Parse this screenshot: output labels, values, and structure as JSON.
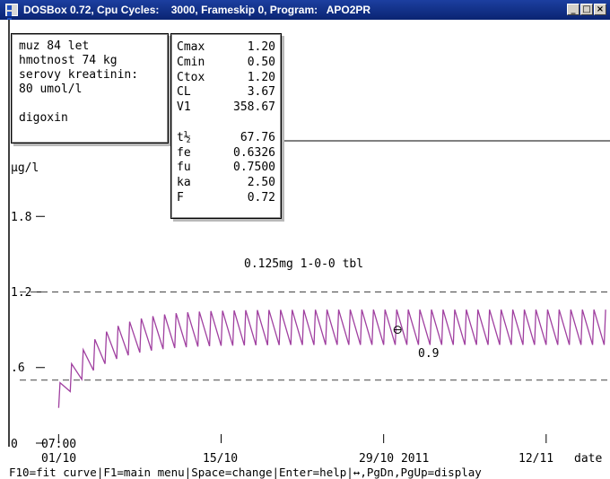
{
  "window": {
    "title": "DOSBox 0.72, Cpu Cycles:    3000, Frameskip 0, Program:   APO2PR",
    "buttons": [
      "_",
      "□",
      "×"
    ]
  },
  "patient": {
    "line1": "muz 84 let",
    "line2": "hmotnost 74 kg",
    "line3": "serovy kreatinin:",
    "line4": "80 umol/l",
    "drug": "digoxin"
  },
  "params": [
    {
      "label": "Cmax",
      "value": "1.20"
    },
    {
      "label": "Cmin",
      "value": "0.50"
    },
    {
      "label": "Ctox",
      "value": "1.20"
    },
    {
      "label": "CL",
      "value": "3.67"
    },
    {
      "label": "V1",
      "value": "358.67"
    },
    {
      "label": "",
      "value": ""
    },
    {
      "label": "t½",
      "value": "67.76"
    },
    {
      "label": "fe",
      "value": "0.6326"
    },
    {
      "label": "fu",
      "value": "0.7500"
    },
    {
      "label": "ka",
      "value": "2.50"
    },
    {
      "label": "F",
      "value": "0.72"
    }
  ],
  "chart_data": {
    "type": "line",
    "ylabel": "µg/l",
    "y_ticks": [
      "1.8",
      "1.2",
      ".6",
      "0"
    ],
    "ylim": [
      0,
      2.4
    ],
    "x_ticks": [
      {
        "label": "01/10",
        "day": 0
      },
      {
        "label": "15/10",
        "day": 14
      },
      {
        "label": "29/10 2011",
        "day": 28
      },
      {
        "label": "12/11",
        "day": 42
      }
    ],
    "x_start_time": "07:00",
    "xlabel": "date",
    "xlim_days": [
      -0.8,
      47.5
    ],
    "reference_lines": [
      {
        "name": "Cmax",
        "value": 1.2
      },
      {
        "name": "Cmin",
        "value": 0.5
      }
    ],
    "annotation": "0.125mg 1-0-0 tbl",
    "marker": {
      "day": 29.2,
      "value": 0.9,
      "label": "0.9"
    },
    "series_color": "#a040a0",
    "dosing": {
      "interval_days": 1,
      "trough_steady": 0.78,
      "peak_steady": 1.06,
      "approach_rate": 0.3
    }
  },
  "status": "F10=fit curve|F1=main menu|Space=change|Enter=help|↔,PgDn,PgUp=display"
}
